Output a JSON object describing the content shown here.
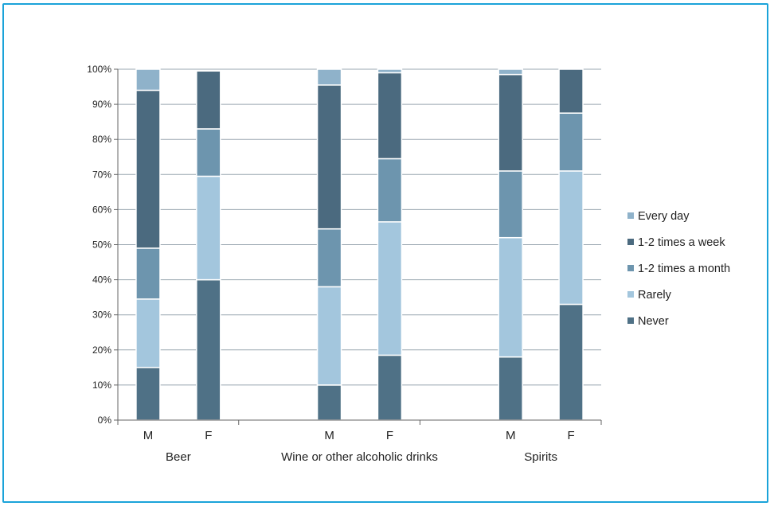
{
  "chart_data": {
    "type": "bar",
    "stacked": true,
    "groups": [
      "Beer",
      "Wine or other alcoholic drinks",
      "Spirits"
    ],
    "categories": [
      "M",
      "F",
      "M",
      "F",
      "M",
      "F"
    ],
    "yticks": [
      "0%",
      "10%",
      "20%",
      "30%",
      "40%",
      "50%",
      "60%",
      "70%",
      "80%",
      "90%",
      "100%"
    ],
    "ylim": [
      0,
      100
    ],
    "grid": true,
    "legend_position": "right",
    "series": [
      {
        "name": "Never",
        "color": "#4f7186",
        "values": [
          15,
          40,
          10,
          18.5,
          18,
          33
        ]
      },
      {
        "name": "Rarely",
        "color": "#a3c6dd",
        "values": [
          19.5,
          29.5,
          28,
          38,
          34,
          38
        ]
      },
      {
        "name": "1-2 times a month",
        "color": "#6d95ae",
        "values": [
          14.5,
          13.5,
          16.5,
          18,
          19,
          16.5
        ]
      },
      {
        "name": "1-2 times a week",
        "color": "#4b6a7f",
        "values": [
          45,
          16.5,
          41,
          24.5,
          27.5,
          12.5
        ]
      },
      {
        "name": "Every day",
        "color": "#8fb2ca",
        "values": [
          6,
          0,
          4.5,
          1,
          1.5,
          0
        ]
      }
    ],
    "legend_order": [
      "Every day",
      "1-2 times a week",
      "1-2 times a month",
      "Rarely",
      "Never"
    ]
  }
}
